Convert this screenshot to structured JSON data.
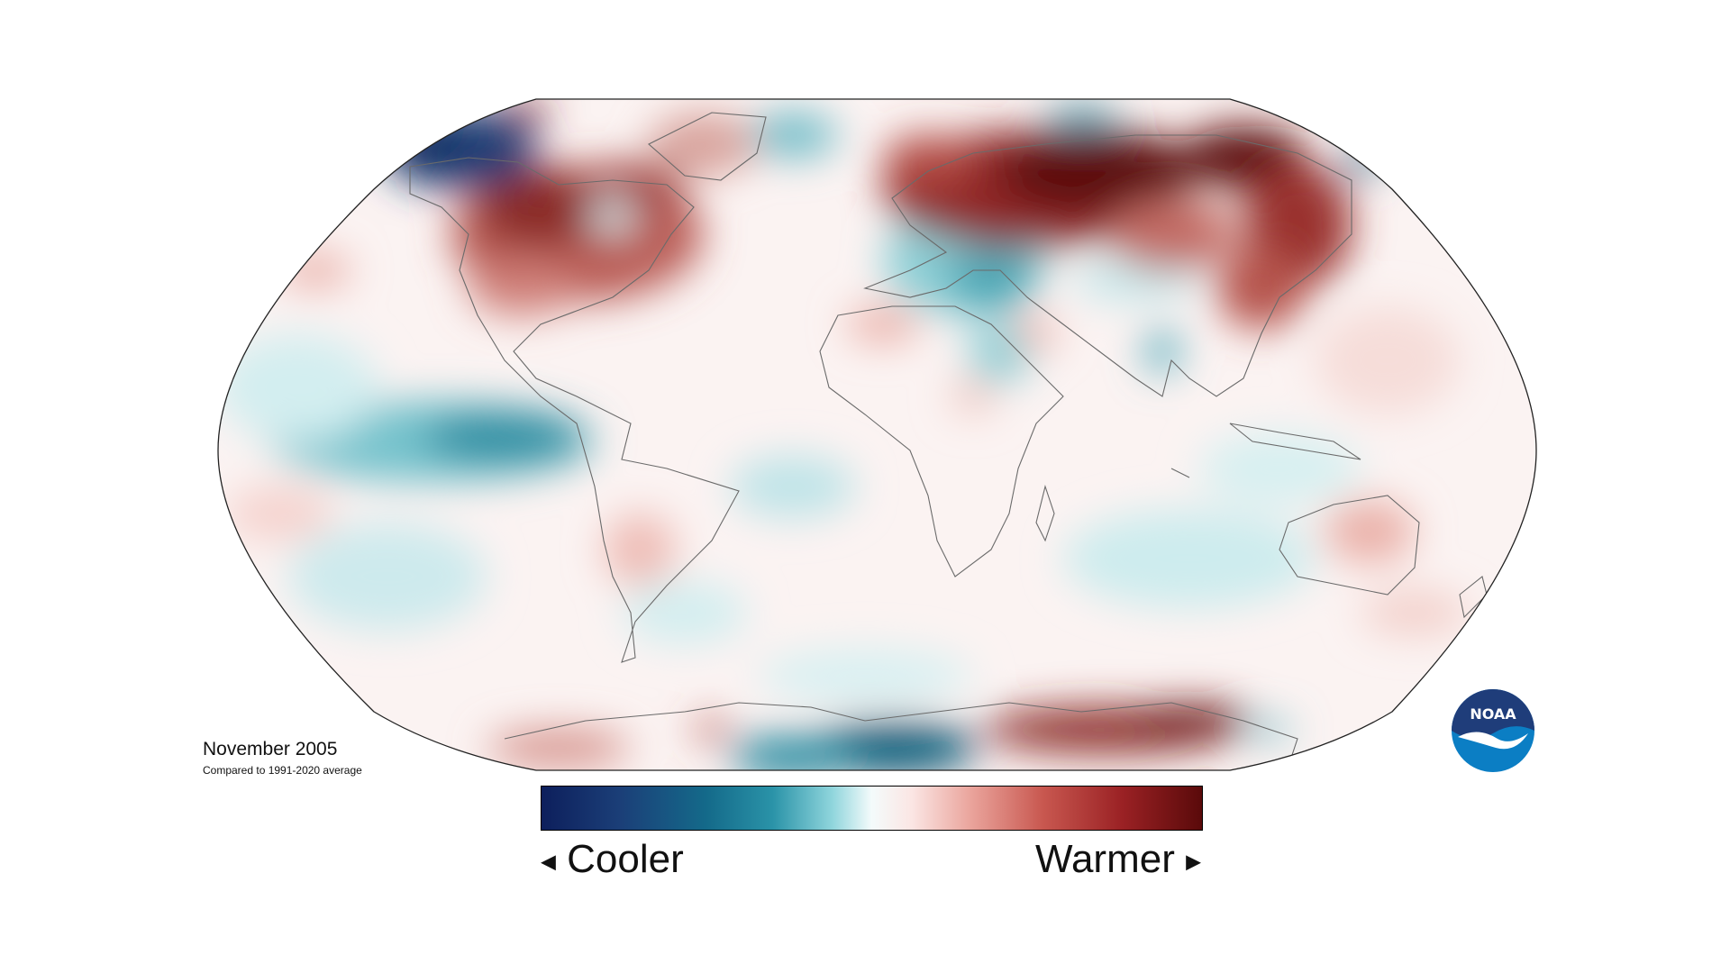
{
  "caption": {
    "title": "November 2005",
    "subtitle": "Compared to 1991-2020 average"
  },
  "legend": {
    "cool_label": "Cooler",
    "warm_label": "Warmer",
    "cool_arrow": "◀",
    "warm_arrow": "▶",
    "colors": [
      "#0d1f5c",
      "#146a8a",
      "#8fd5dc",
      "#f4fbfb",
      "#eaa49c",
      "#c8574f",
      "#5a0a0a"
    ]
  },
  "logo": {
    "text": "NOAA",
    "colors": {
      "top": "#1f3d7a",
      "bottom": "#0b7ec4",
      "bird": "#ffffff"
    }
  },
  "map": {
    "projection": "Robinson",
    "anomalies": [
      {
        "region": "alaska-yukon",
        "tone": "strong-cool"
      },
      {
        "region": "western-canada",
        "tone": "strong-warm"
      },
      {
        "region": "eastern-canada",
        "tone": "warm"
      },
      {
        "region": "western-usa",
        "tone": "warm"
      },
      {
        "region": "eastern-pacific-equatorial",
        "tone": "cool"
      },
      {
        "region": "europe-mediterranean",
        "tone": "cool"
      },
      {
        "region": "northern-russia",
        "tone": "strong-warm"
      },
      {
        "region": "eastern-siberia",
        "tone": "strong-warm"
      },
      {
        "region": "east-asia",
        "tone": "warm"
      },
      {
        "region": "australia",
        "tone": "warm"
      },
      {
        "region": "southern-indian-ocean",
        "tone": "cool"
      },
      {
        "region": "antarctica-west",
        "tone": "strong-cool"
      },
      {
        "region": "antarctica-east",
        "tone": "strong-warm"
      }
    ]
  }
}
